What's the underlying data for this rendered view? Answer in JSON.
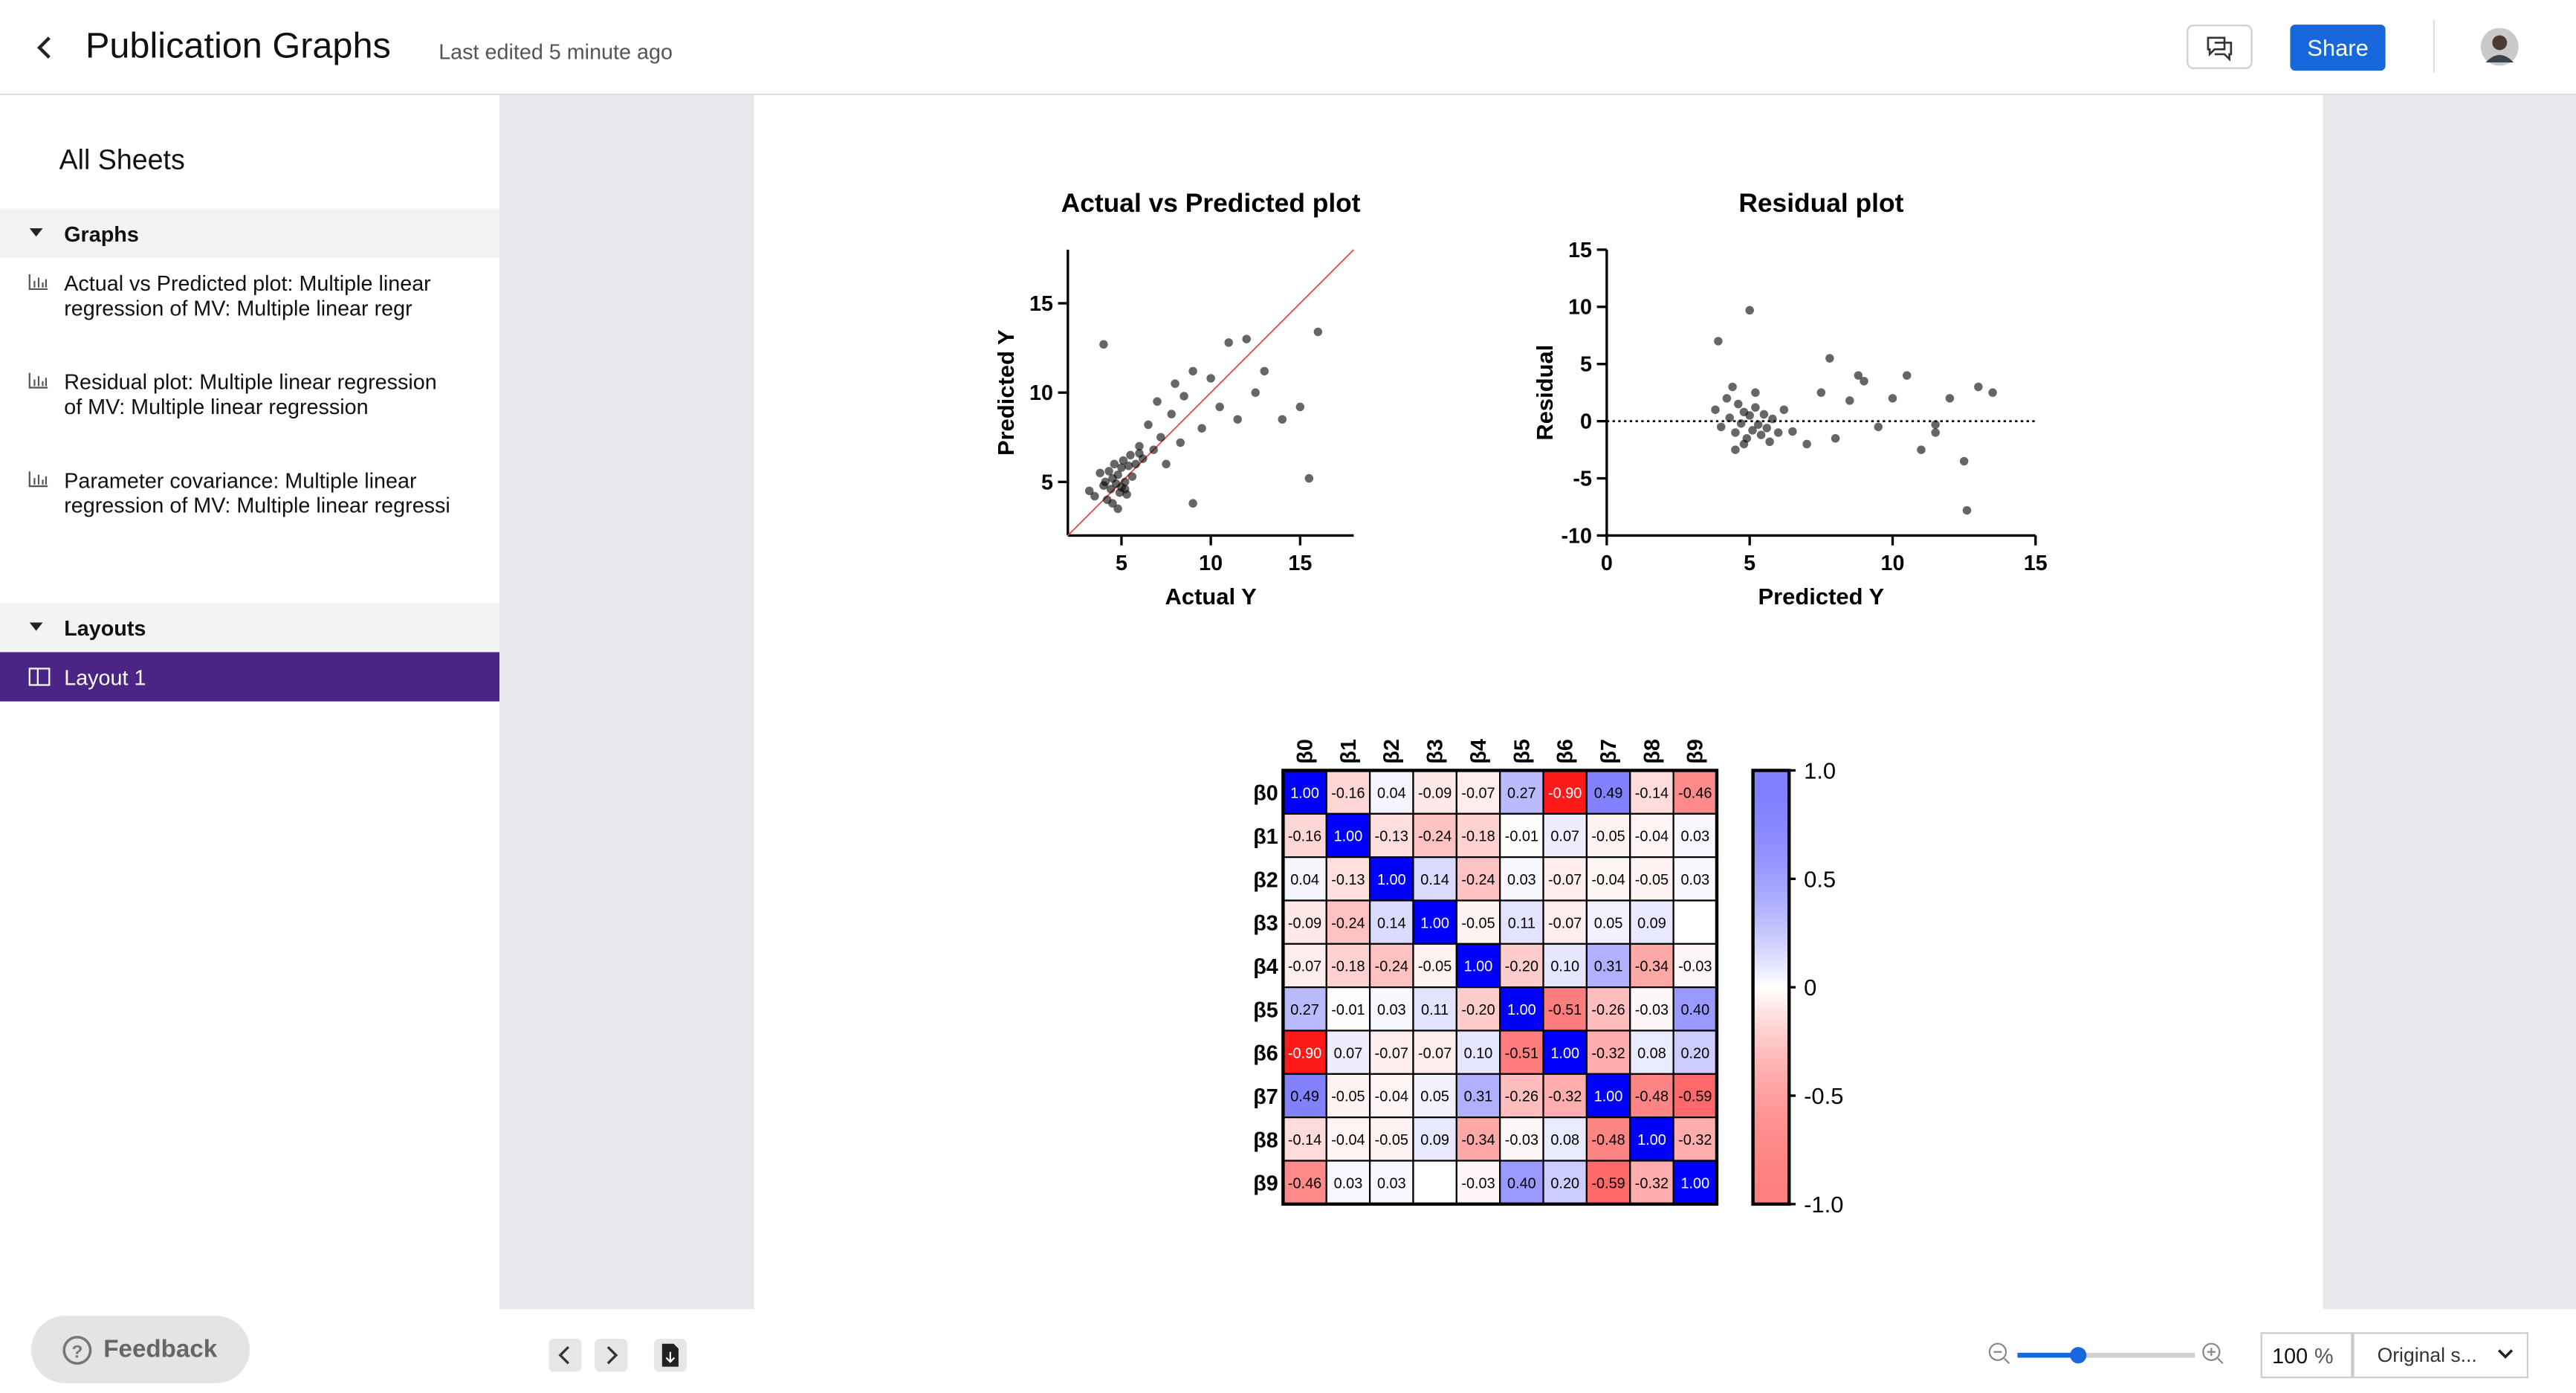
{
  "header": {
    "title": "Publication Graphs",
    "subtitle": "Last edited 5 minute ago",
    "share": "Share"
  },
  "sidebar": {
    "title": "All Sheets",
    "sections": [
      {
        "title": "Graphs",
        "items": [
          "Actual vs Predicted plot: Multiple linear regression of MV: Multiple linear regr",
          "Residual plot: Multiple linear regression of MV: Multiple linear regression",
          "Parameter covariance: Multiple linear regression of MV: Multiple linear regressi"
        ]
      },
      {
        "title": "Layouts",
        "items": [
          "Layout 1"
        ]
      }
    ]
  },
  "footer": {
    "feedback": "Feedback",
    "zoom": 100,
    "zoom_unit": "%",
    "view": "Original s..."
  },
  "chart_data": [
    {
      "type": "scatter",
      "title": "Actual vs Predicted plot",
      "xlabel": "Actual Y",
      "ylabel": "Predicted Y",
      "xlim": [
        2,
        18
      ],
      "ylim": [
        2,
        18
      ],
      "xticks": [
        5,
        10,
        15
      ],
      "yticks": [
        5,
        10,
        15
      ],
      "color": "#000000",
      "reference_line": {
        "x": [
          2,
          18
        ],
        "y": [
          2,
          18
        ],
        "color": "#e8453c"
      },
      "series": [
        {
          "name": "Points",
          "color": "#000000",
          "x": [
            3.2,
            3.5,
            3.8,
            4.0,
            4.1,
            4.2,
            4.3,
            4.4,
            4.5,
            4.5,
            4.6,
            4.7,
            4.8,
            4.9,
            5.0,
            5.0,
            5.1,
            5.2,
            5.3,
            5.4,
            5.5,
            5.6,
            5.8,
            6.0,
            6.2,
            6.5,
            6.8,
            7.0,
            7.2,
            7.5,
            7.8,
            8.0,
            8.3,
            8.5,
            9.0,
            9.5,
            10.0,
            10.5,
            11.0,
            11.5,
            12.0,
            12.5,
            13.0,
            14.0,
            15.0,
            15.5,
            16.0,
            4.0,
            4.8,
            5.2,
            9.0,
            6.0
          ],
          "values": [
            4.5,
            4.2,
            5.5,
            4.8,
            5.0,
            4.0,
            5.6,
            4.6,
            5.2,
            3.8,
            6.0,
            4.9,
            5.4,
            4.4,
            5.8,
            4.7,
            6.2,
            5.0,
            4.3,
            5.9,
            6.5,
            5.3,
            6.0,
            7.0,
            6.3,
            8.2,
            6.8,
            9.5,
            7.5,
            6.0,
            8.8,
            10.5,
            7.2,
            9.8,
            11.2,
            8.0,
            10.8,
            9.2,
            12.8,
            8.5,
            13.0,
            10.0,
            11.2,
            8.5,
            9.2,
            5.2,
            13.4,
            12.7,
            3.5,
            4.6,
            3.8,
            6.6
          ]
        }
      ]
    },
    {
      "type": "scatter",
      "title": "Residual plot",
      "xlabel": "Predicted Y",
      "ylabel": "Residual",
      "xlim": [
        0,
        15
      ],
      "ylim": [
        -10,
        15
      ],
      "xticks": [
        0,
        5,
        10,
        15
      ],
      "yticks": [
        -10,
        -5,
        0,
        5,
        10,
        15
      ],
      "color": "#000000",
      "hline": 0,
      "series": [
        {
          "name": "Points",
          "color": "#000000",
          "x": [
            3.8,
            4.0,
            4.2,
            4.3,
            4.5,
            4.6,
            4.7,
            4.8,
            4.9,
            5.0,
            5.1,
            5.2,
            5.3,
            5.4,
            5.5,
            5.6,
            5.8,
            6.0,
            4.4,
            4.8,
            5.2,
            5.7,
            6.2,
            6.5,
            7.0,
            7.5,
            8.0,
            8.5,
            9.0,
            9.5,
            10.0,
            10.5,
            11.0,
            11.5,
            12.0,
            12.5,
            13.0,
            13.5,
            5.0,
            4.5,
            7.8,
            8.8,
            11.5,
            12.6,
            3.9
          ],
          "values": [
            1.0,
            -0.5,
            2.0,
            0.3,
            -1.0,
            1.5,
            -0.2,
            0.8,
            -1.5,
            0.5,
            -0.8,
            1.2,
            -0.3,
            -1.2,
            0.6,
            -0.6,
            0.2,
            -1.0,
            3.0,
            -2.0,
            2.5,
            -1.8,
            1.0,
            -0.9,
            -2.0,
            2.5,
            -1.5,
            1.8,
            3.5,
            -0.5,
            2.0,
            4.0,
            -2.5,
            -1.0,
            2.0,
            -3.5,
            3.0,
            2.5,
            9.7,
            -2.5,
            5.5,
            4.0,
            -0.3,
            -7.8,
            7.0
          ]
        }
      ]
    },
    {
      "type": "heatmap",
      "rows": [
        "β0",
        "β1",
        "β2",
        "β3",
        "β4",
        "β5",
        "β6",
        "β7",
        "β8",
        "β9"
      ],
      "columns": [
        "β0",
        "β1",
        "β2",
        "β3",
        "β4",
        "β5",
        "β6",
        "β7",
        "β8",
        "β9"
      ],
      "colors": {
        "positive": "#0000ff",
        "negative": "#ff0000",
        "zero": "#ffffff"
      },
      "zlim": [
        -1,
        1
      ],
      "zticks": [
        {
          "value": 1,
          "label": "1.0"
        },
        0.5,
        0,
        -0.5,
        {
          "value": -1,
          "label": "-1.0"
        }
      ],
      "values": [
        [
          1.0,
          -0.16,
          0.04,
          -0.09,
          -0.07,
          0.27,
          -0.9,
          0.49,
          -0.14,
          -0.46
        ],
        [
          -0.16,
          1.0,
          -0.13,
          -0.24,
          -0.18,
          -0.01,
          0.07,
          -0.05,
          -0.04,
          0.03
        ],
        [
          0.04,
          -0.13,
          1.0,
          0.14,
          -0.24,
          0.03,
          -0.07,
          -0.04,
          -0.05,
          0.03
        ],
        [
          -0.09,
          -0.24,
          0.14,
          1.0,
          -0.05,
          0.11,
          -0.07,
          0.05,
          0.09,
          null
        ],
        [
          -0.07,
          -0.18,
          -0.24,
          -0.05,
          1.0,
          -0.2,
          0.1,
          0.31,
          -0.34,
          -0.03
        ],
        [
          0.27,
          -0.01,
          0.03,
          0.11,
          -0.2,
          1.0,
          -0.51,
          -0.26,
          -0.03,
          0.4
        ],
        [
          -0.9,
          0.07,
          -0.07,
          -0.07,
          0.1,
          -0.51,
          1.0,
          -0.32,
          0.08,
          0.2
        ],
        [
          0.49,
          -0.05,
          -0.04,
          0.05,
          0.31,
          -0.26,
          -0.32,
          1.0,
          -0.48,
          -0.59
        ],
        [
          -0.14,
          -0.04,
          -0.05,
          0.09,
          -0.34,
          -0.03,
          0.08,
          -0.48,
          1.0,
          -0.32
        ],
        [
          -0.46,
          0.03,
          0.03,
          null,
          -0.03,
          0.4,
          0.2,
          -0.59,
          -0.32,
          1.0
        ]
      ],
      "value_labels": [
        [
          "1.00",
          "-0.16",
          "0.04",
          "-0.09",
          "-0.07",
          "0.27",
          "-0.90",
          "0.49",
          "-0.14",
          "-0.46"
        ],
        [
          "-0.16",
          "1.00",
          "-0.13",
          "-0.24",
          "-0.18",
          "-0.01",
          "0.07",
          "-0.05",
          "-0.04",
          "0.03"
        ],
        [
          "0.04",
          "-0.13",
          "1.00",
          "0.14",
          "-0.24",
          "0.03",
          "-0.07",
          "-0.04",
          "-0.05",
          "0.03"
        ],
        [
          "-0.09",
          "-0.24",
          "0.14",
          "1.00",
          "-0.05",
          "0.11",
          "-0.07",
          "0.05",
          "0.09",
          null
        ],
        [
          "-0.07",
          "-0.18",
          "-0.24",
          "-0.05",
          "1.00",
          "-0.20",
          "0.10",
          "0.31",
          "-0.34",
          "-0.03"
        ],
        [
          "0.27",
          "-0.01",
          "0.03",
          "0.11",
          "-0.20",
          "1.00",
          "-0.51",
          "-0.26",
          "-0.03",
          "0.40"
        ],
        [
          "-0.90",
          "0.07",
          "-0.07",
          "-0.07",
          "0.10",
          "-0.51",
          "1.00",
          "-0.32",
          "0.08",
          "0.20"
        ],
        [
          "0.49",
          "-0.05",
          "-0.04",
          "0.05",
          "0.31",
          "-0.26",
          "-0.32",
          "1.00",
          "-0.48",
          "-0.59"
        ],
        [
          "-0.14",
          "-0.04",
          "-0.05",
          "0.09",
          "-0.34",
          "-0.03",
          "0.08",
          "-0.48",
          "1.00",
          "-0.32"
        ],
        [
          "-0.46",
          "0.03",
          "0.03",
          null,
          "-0.03",
          "0.40",
          "0.20",
          "-0.59",
          "-0.32",
          "1.00"
        ]
      ]
    }
  ]
}
